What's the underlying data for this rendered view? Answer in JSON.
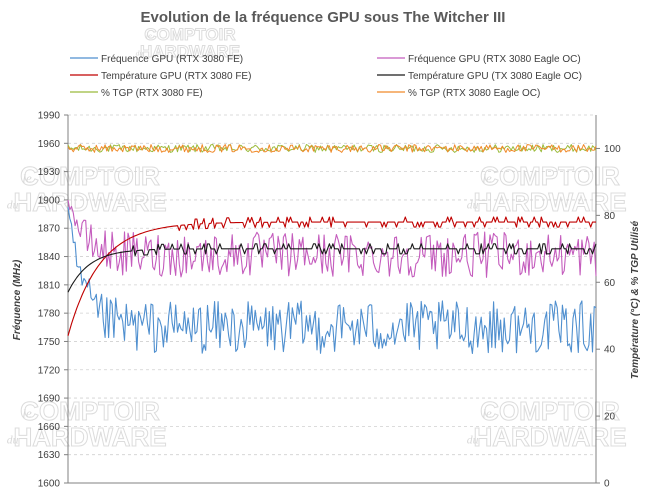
{
  "chart_data": {
    "type": "line",
    "title": "Evolution de la fréquence GPU sous The Witcher III",
    "ylabel_left": "Fréquence (MHz)",
    "ylabel_right": "Température (°C) & % TGP Utilisé",
    "ylim_left": [
      1600,
      1990
    ],
    "yticks_left": [
      "1600",
      "1630",
      "1660",
      "1690",
      "1720",
      "1750",
      "1780",
      "1810",
      "1840",
      "1870",
      "1900",
      "1930",
      "1960",
      "1990"
    ],
    "ylim_right": [
      0,
      110
    ],
    "yticks_right": [
      "0",
      "20",
      "40",
      "60",
      "80",
      "100"
    ],
    "x_samples": 300,
    "legend": [
      "Fréquence GPU (RTX 3080 FE)",
      "Fréquence GPU (RTX 3080 Eagle OC)",
      "Température GPU (RTX 3080 FE)",
      "Température GPU (TX 3080 Eagle OC)",
      "% TGP (RTX 3080 FE)",
      "% TGP (RTX 3080 Eagle OC)"
    ],
    "series": [
      {
        "name": "Fréquence GPU (RTX 3080 FE)",
        "axis": "left",
        "color": "#4f8fcf",
        "start": 1890,
        "settle": 1765,
        "noise": 28,
        "min": 1725,
        "max": 1800
      },
      {
        "name": "Fréquence GPU (RTX 3080 Eagle OC)",
        "axis": "left",
        "color": "#c45cbd",
        "start": 1905,
        "settle": 1842,
        "noise": 24,
        "min": 1800,
        "max": 1880
      },
      {
        "name": "Température GPU (RTX 3080 FE)",
        "axis": "right",
        "color": "#c00000",
        "start": 44,
        "settle": 78,
        "rise": 18
      },
      {
        "name": "Température GPU (TX 3080 Eagle OC)",
        "axis": "right",
        "color": "#1a1a1a",
        "start": 57,
        "settle": 70,
        "rise": 12
      },
      {
        "name": "% TGP (RTX 3080 FE)",
        "axis": "right",
        "color": "#9bbb3c",
        "level": 100,
        "noise": 1.2
      },
      {
        "name": "% TGP (RTX 3080 Eagle OC)",
        "axis": "right",
        "color": "#f08a2a",
        "level": 100,
        "noise": 1.2
      }
    ]
  },
  "watermark": {
    "prefix": "le",
    "line1": "COMPTOIR",
    "mid": "du",
    "line2": "HARDWARE"
  }
}
